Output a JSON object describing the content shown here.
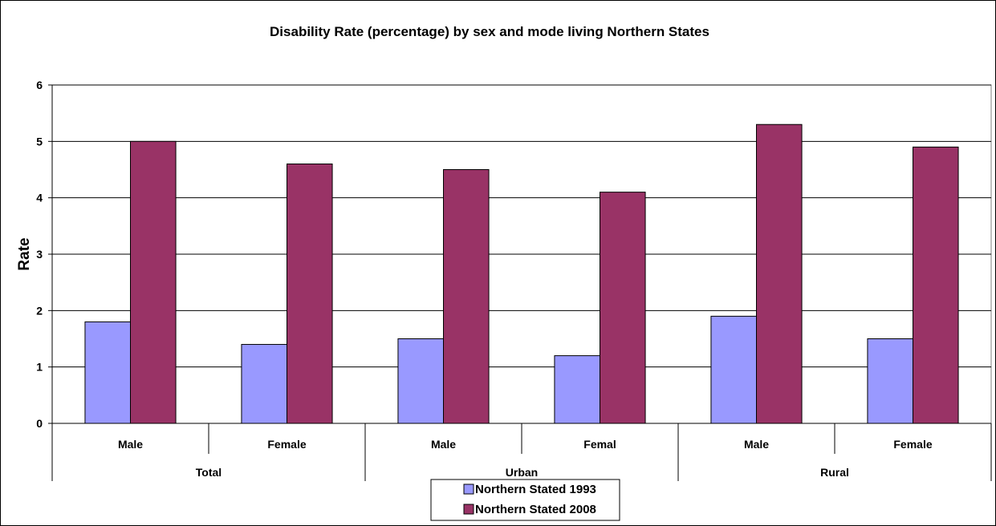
{
  "chart_data": {
    "type": "bar",
    "title": "Disability Rate (percentage) by sex and mode living Northern States",
    "ylabel": "Rate",
    "xlabel": "",
    "ylim": [
      0,
      6
    ],
    "yticks": [
      0,
      1,
      2,
      3,
      4,
      5,
      6
    ],
    "grid": true,
    "legend_position": "bottom",
    "groups": [
      {
        "label": "Total",
        "categories": [
          "Male",
          "Female"
        ]
      },
      {
        "label": "Urban",
        "categories": [
          "Male",
          "Femal"
        ]
      },
      {
        "label": "Rural",
        "categories": [
          "Male",
          "Female"
        ]
      }
    ],
    "categories": [
      "Male",
      "Female",
      "Male",
      "Femal",
      "Male",
      "Female"
    ],
    "series": [
      {
        "name": "Northern Stated 1993",
        "color": "#9999ff",
        "values": [
          1.8,
          1.4,
          1.5,
          1.2,
          1.9,
          1.5
        ]
      },
      {
        "name": "Northern Stated 2008",
        "color": "#993366",
        "values": [
          5.0,
          4.6,
          4.5,
          4.1,
          5.3,
          4.9
        ]
      }
    ]
  }
}
